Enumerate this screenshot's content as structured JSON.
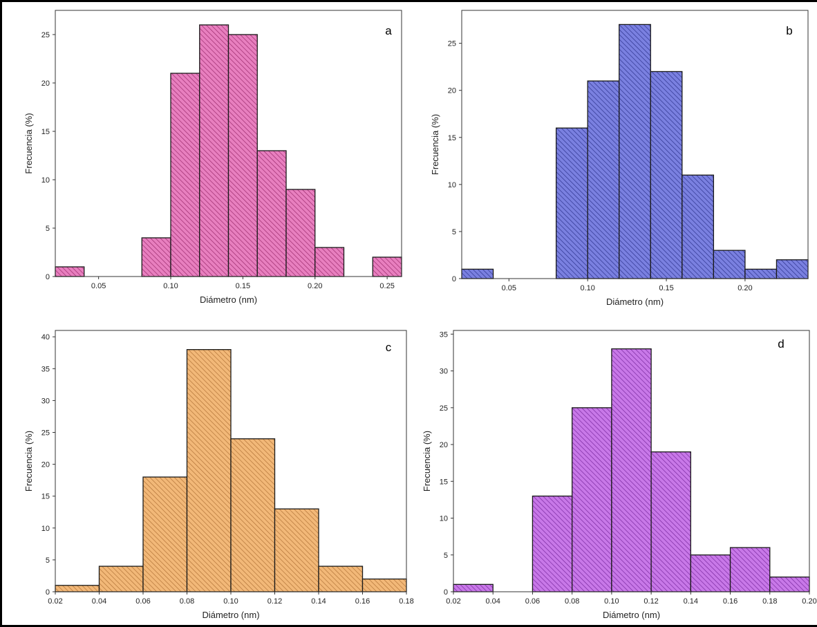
{
  "chart_data": [
    {
      "type": "bar",
      "panel_label": "a",
      "xlabel": "Diámetro (nm)",
      "ylabel": "Frecuencia (%)",
      "xlim": [
        0.02,
        0.26
      ],
      "ylim": [
        0,
        27.5
      ],
      "xticks": [
        "0.05",
        "0.10",
        "0.15",
        "0.20",
        "0.25"
      ],
      "yticks": [
        "0",
        "5",
        "10",
        "15",
        "20",
        "25"
      ],
      "bin_width": 0.02,
      "bins": [
        {
          "x0": 0.02,
          "value": 1
        },
        {
          "x0": 0.04,
          "value": 0
        },
        {
          "x0": 0.06,
          "value": 0
        },
        {
          "x0": 0.08,
          "value": 4
        },
        {
          "x0": 0.1,
          "value": 21
        },
        {
          "x0": 0.12,
          "value": 26
        },
        {
          "x0": 0.14,
          "value": 25
        },
        {
          "x0": 0.16,
          "value": 13
        },
        {
          "x0": 0.18,
          "value": 9
        },
        {
          "x0": 0.2,
          "value": 3
        },
        {
          "x0": 0.22,
          "value": 0
        },
        {
          "x0": 0.24,
          "value": 2
        }
      ],
      "color": "#e87fbf",
      "hatch": "#9c2c6e"
    },
    {
      "type": "bar",
      "panel_label": "b",
      "xlabel": "Diámetro (nm)",
      "ylabel": "Frecuencia (%)",
      "xlim": [
        0.02,
        0.24
      ],
      "ylim": [
        0,
        28.5
      ],
      "xticks": [
        "0.05",
        "0.10",
        "0.15",
        "0.20"
      ],
      "yticks": [
        "0",
        "5",
        "10",
        "15",
        "20",
        "25"
      ],
      "bin_width": 0.02,
      "bins": [
        {
          "x0": 0.02,
          "value": 1
        },
        {
          "x0": 0.04,
          "value": 0
        },
        {
          "x0": 0.06,
          "value": 0
        },
        {
          "x0": 0.08,
          "value": 16
        },
        {
          "x0": 0.1,
          "value": 21
        },
        {
          "x0": 0.12,
          "value": 27
        },
        {
          "x0": 0.14,
          "value": 22
        },
        {
          "x0": 0.16,
          "value": 11
        },
        {
          "x0": 0.18,
          "value": 3
        },
        {
          "x0": 0.2,
          "value": 1
        },
        {
          "x0": 0.22,
          "value": 2
        }
      ],
      "color": "#7a80e0",
      "hatch": "#2e348f"
    },
    {
      "type": "bar",
      "panel_label": "c",
      "xlabel": "Diámetro (nm)",
      "ylabel": "Frecuencia (%)",
      "xlim": [
        0.02,
        0.18
      ],
      "ylim": [
        0,
        41
      ],
      "xticks": [
        "0.02",
        "0.04",
        "0.06",
        "0.08",
        "0.10",
        "0.12",
        "0.14",
        "0.16",
        "0.18"
      ],
      "yticks": [
        "0",
        "5",
        "10",
        "15",
        "20",
        "25",
        "30",
        "35",
        "40"
      ],
      "bin_width": 0.02,
      "bins": [
        {
          "x0": 0.02,
          "value": 1
        },
        {
          "x0": 0.04,
          "value": 4
        },
        {
          "x0": 0.06,
          "value": 18
        },
        {
          "x0": 0.08,
          "value": 38
        },
        {
          "x0": 0.1,
          "value": 24
        },
        {
          "x0": 0.12,
          "value": 13
        },
        {
          "x0": 0.14,
          "value": 4
        },
        {
          "x0": 0.16,
          "value": 2
        }
      ],
      "color": "#f2b878",
      "hatch": "#b37438"
    },
    {
      "type": "bar",
      "panel_label": "d",
      "xlabel": "Diámetro (nm)",
      "ylabel": "Frecuencia (%)",
      "xlim": [
        0.02,
        0.2
      ],
      "ylim": [
        0,
        35.5
      ],
      "xticks": [
        "0.02",
        "0.04",
        "0.06",
        "0.08",
        "0.10",
        "0.12",
        "0.14",
        "0.16",
        "0.18",
        "0.20"
      ],
      "yticks": [
        "0",
        "5",
        "10",
        "15",
        "20",
        "25",
        "30",
        "35"
      ],
      "bin_width": 0.02,
      "bins": [
        {
          "x0": 0.02,
          "value": 1
        },
        {
          "x0": 0.04,
          "value": 0
        },
        {
          "x0": 0.06,
          "value": 13
        },
        {
          "x0": 0.08,
          "value": 25
        },
        {
          "x0": 0.1,
          "value": 33
        },
        {
          "x0": 0.12,
          "value": 19
        },
        {
          "x0": 0.14,
          "value": 5
        },
        {
          "x0": 0.16,
          "value": 6
        },
        {
          "x0": 0.18,
          "value": 2
        }
      ],
      "color": "#c878e8",
      "hatch": "#7a2aa0"
    }
  ]
}
